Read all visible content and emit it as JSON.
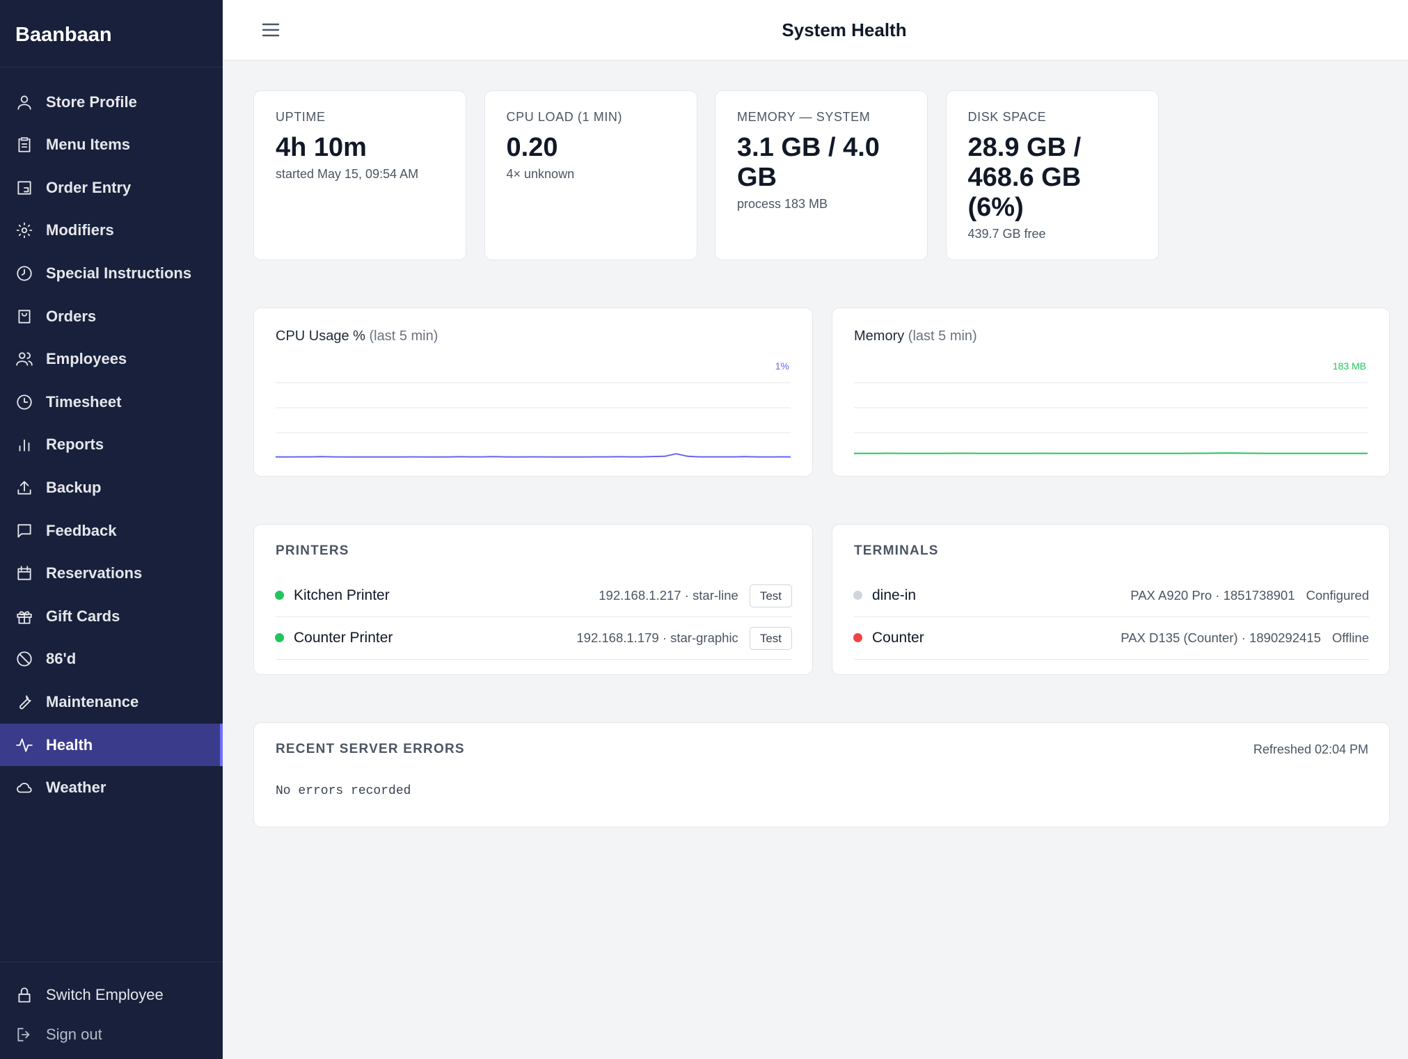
{
  "sidebar": {
    "brand": "Baanbaan",
    "nav": [
      {
        "label": "Store Profile"
      },
      {
        "label": "Menu Items"
      },
      {
        "label": "Order Entry"
      },
      {
        "label": "Modifiers"
      },
      {
        "label": "Special Instructions"
      },
      {
        "label": "Orders"
      },
      {
        "label": "Employees"
      },
      {
        "label": "Timesheet"
      },
      {
        "label": "Reports"
      },
      {
        "label": "Backup"
      },
      {
        "label": "Feedback"
      },
      {
        "label": "Reservations"
      },
      {
        "label": "Gift Cards"
      },
      {
        "label": "86'd"
      },
      {
        "label": "Maintenance"
      },
      {
        "label": "Health",
        "active": true
      },
      {
        "label": "Weather"
      }
    ],
    "footer": [
      "Switch Employee",
      "Sign out"
    ]
  },
  "header": {
    "title": "System Health"
  },
  "stats": [
    {
      "label": "UPTIME",
      "value": "4h 10m",
      "detail": "started May 15, 09:54 AM"
    },
    {
      "label": "CPU LOAD (1 MIN)",
      "value": "0.20",
      "detail": "4× unknown"
    },
    {
      "label": "MEMORY — SYSTEM",
      "value": "3.1 GB / 4.0 GB",
      "detail": "process 183 MB"
    },
    {
      "label": "DISK SPACE",
      "value": "28.9 GB / 468.6 GB (6%)",
      "detail": "439.7 GB free"
    }
  ],
  "chart_data": [
    {
      "type": "line",
      "title": "CPU Usage %",
      "subtitle": "(last 5 min)",
      "latest_label": "1%",
      "color": "#6366f1",
      "ylim": [
        0,
        100
      ],
      "yticks": [
        25,
        50,
        75
      ],
      "values": [
        1,
        0.9,
        1,
        1,
        1.2,
        1,
        0.8,
        0.8,
        0.9,
        0.8,
        0.8,
        0.9,
        1,
        0.8,
        0.8,
        0.9,
        1.1,
        1,
        1,
        1.2,
        1,
        0.8,
        1,
        1,
        0.9,
        0.8,
        0.9,
        0.8,
        1,
        1,
        1.1,
        1,
        1,
        1.3,
        1.5,
        4,
        1.5,
        1,
        1,
        1,
        1,
        1.2,
        1,
        0.8,
        1,
        1
      ]
    },
    {
      "type": "line",
      "title": "Memory",
      "subtitle": "(last 5 min)",
      "latest_label": "183 MB",
      "color": "#22c55e",
      "ylim": [
        0,
        4096
      ],
      "yticks": [
        1024,
        2048,
        3072
      ],
      "values": [
        183,
        183,
        183,
        184,
        183,
        183,
        183,
        183,
        184,
        184,
        183,
        183,
        183,
        183,
        183,
        184,
        183,
        183,
        183,
        183,
        183,
        183,
        183,
        183,
        183,
        183,
        183,
        184,
        185,
        190,
        195,
        188,
        184,
        183,
        183,
        183,
        183,
        183,
        183,
        183,
        183,
        183
      ]
    }
  ],
  "printers": {
    "title": "PRINTERS",
    "items": [
      {
        "name": "Kitchen Printer",
        "detail": "192.168.1.217 · star-line",
        "action": "Test",
        "color": "#22c55e"
      },
      {
        "name": "Counter Printer",
        "detail": "192.168.1.179 · star-graphic",
        "action": "Test",
        "color": "#22c55e"
      }
    ]
  },
  "terminals": {
    "title": "TERMINALS",
    "items": [
      {
        "name": "dine-in",
        "detail": "PAX A920 Pro · 1851738901",
        "state": "Configured",
        "color": "#d1d5db"
      },
      {
        "name": "Counter",
        "detail": "PAX D135 (Counter) · 1890292415",
        "state": "Offline",
        "color": "#ef4444"
      }
    ]
  },
  "errors": {
    "title": "RECENT SERVER ERRORS",
    "refreshed": "Refreshed 02:04 PM",
    "message": "No errors recorded"
  }
}
